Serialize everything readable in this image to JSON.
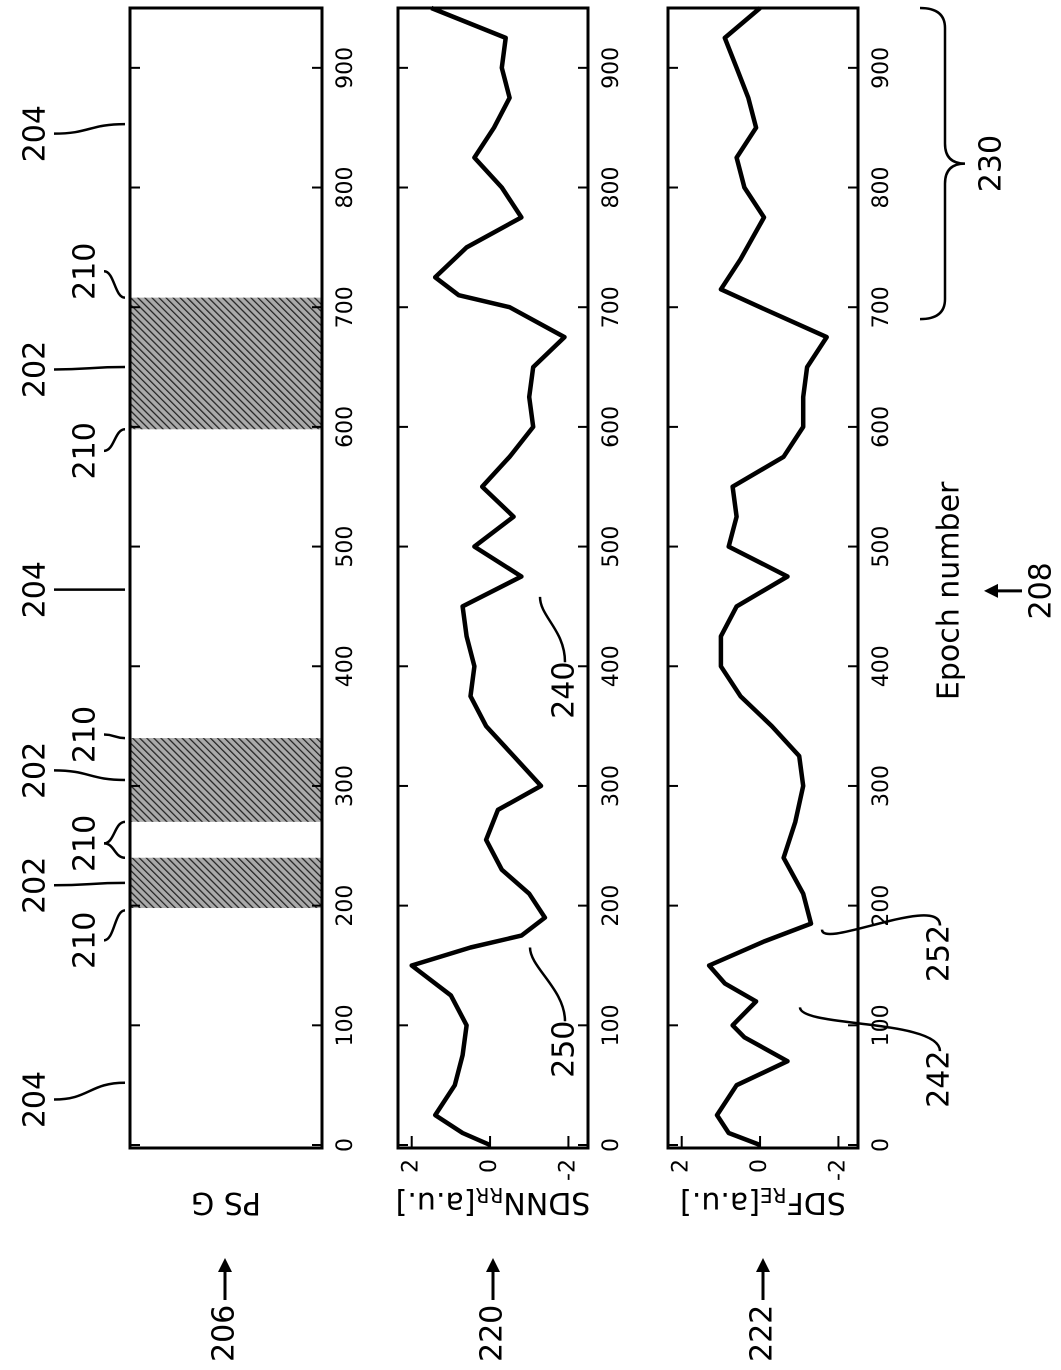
{
  "chart_data": [
    {
      "type": "interval",
      "ylabel": "PS G",
      "xlim": [
        0,
        950
      ],
      "xticks": [
        0,
        100,
        200,
        300,
        400,
        500,
        600,
        700,
        800,
        900
      ],
      "intervals": [
        [
          198,
          240
        ],
        [
          270,
          340
        ],
        [
          598,
          708
        ]
      ],
      "color": "#555555"
    },
    {
      "type": "line",
      "ylabel": "SDNN",
      "ylabel_sub": "RR",
      "ylabel_unit": "[a.u.]",
      "xlim": [
        0,
        950
      ],
      "xticks": [
        0,
        100,
        200,
        300,
        400,
        500,
        600,
        700,
        800,
        900
      ],
      "ylim": [
        -2.5,
        2.35
      ],
      "yticks": [
        -2,
        0,
        2
      ],
      "color": "#000000",
      "x": [
        0,
        10,
        25,
        50,
        75,
        100,
        125,
        150,
        165,
        175,
        190,
        210,
        230,
        255,
        280,
        300,
        325,
        350,
        375,
        400,
        425,
        450,
        475,
        500,
        525,
        550,
        575,
        600,
        625,
        650,
        675,
        700,
        710,
        725,
        750,
        775,
        800,
        825,
        850,
        875,
        900,
        925,
        950
      ],
      "values": [
        0.0,
        0.7,
        1.4,
        0.9,
        0.7,
        0.6,
        1.0,
        2.0,
        0.5,
        -0.8,
        -1.4,
        -1.0,
        -0.3,
        0.1,
        -0.2,
        -1.3,
        -0.6,
        0.1,
        0.5,
        0.4,
        0.6,
        0.7,
        -0.8,
        0.4,
        -0.6,
        0.2,
        -0.5,
        -1.1,
        -1.0,
        -1.1,
        -1.9,
        -0.5,
        0.8,
        1.4,
        0.6,
        -0.8,
        -0.3,
        0.4,
        -0.1,
        -0.5,
        -0.3,
        -0.4,
        1.5
      ]
    },
    {
      "type": "line",
      "ylabel": "SDF",
      "ylabel_sub": "RE",
      "ylabel_unit": "[a.u.]",
      "xlim": [
        0,
        950
      ],
      "xticks": [
        0,
        100,
        200,
        300,
        400,
        500,
        600,
        700,
        800,
        900
      ],
      "ylim": [
        -2.5,
        2.35
      ],
      "yticks": [
        -2,
        0,
        2
      ],
      "color": "#000000",
      "x": [
        0,
        10,
        25,
        50,
        70,
        90,
        100,
        120,
        135,
        150,
        170,
        185,
        210,
        240,
        270,
        300,
        325,
        350,
        375,
        400,
        425,
        450,
        475,
        500,
        525,
        550,
        575,
        600,
        625,
        650,
        675,
        700,
        715,
        740,
        775,
        800,
        825,
        850,
        875,
        900,
        925,
        950
      ],
      "values": [
        0.0,
        0.8,
        1.1,
        0.6,
        -0.7,
        0.4,
        0.7,
        0.1,
        0.9,
        1.3,
        -0.1,
        -1.3,
        -1.1,
        -0.6,
        -0.9,
        -1.1,
        -1.0,
        -0.3,
        0.5,
        1.0,
        1.0,
        0.6,
        -0.7,
        0.8,
        0.6,
        0.7,
        -0.6,
        -1.1,
        -1.1,
        -1.2,
        -1.7,
        0.0,
        1.0,
        0.5,
        -0.1,
        0.4,
        0.6,
        0.1,
        0.3,
        0.6,
        0.9,
        0.0
      ]
    }
  ],
  "callouts": [
    "204",
    "210",
    "202",
    "210",
    "202",
    "210",
    "204",
    "210",
    "202",
    "210",
    "204"
  ],
  "notes": [
    "240",
    "250",
    "252",
    "242"
  ],
  "panel_refs": [
    "206",
    "220",
    "222"
  ],
  "xlabel": "Epoch number",
  "xlabel_ref": "208",
  "brace_label": "230"
}
